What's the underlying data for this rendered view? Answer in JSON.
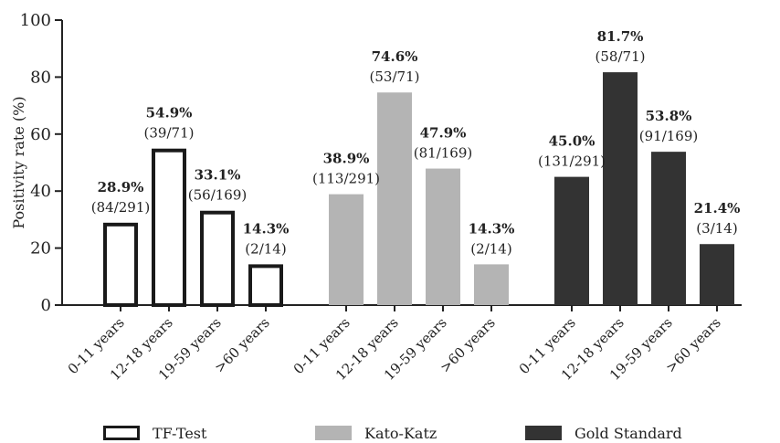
{
  "chart_data": {
    "type": "bar",
    "title": "",
    "ylabel": "Positivity rate (%)",
    "xlabel": "",
    "ylim": [
      0,
      100
    ],
    "yticks": [
      0,
      20,
      40,
      60,
      80,
      100
    ],
    "grid": false,
    "legend_position": "bottom",
    "categories": [
      "0-11 years",
      "12-18 years",
      "19-59 years",
      ">60 years"
    ],
    "series": [
      {
        "name": "TF-Test",
        "style": "outline",
        "color": "#1a1a1a",
        "values": [
          28.9,
          54.9,
          33.1,
          14.3
        ],
        "value_labels": [
          "28.9%",
          "54.9%",
          "33.1%",
          "14.3%"
        ],
        "fraction_labels": [
          "(84/291)",
          "(39/71)",
          "(56/169)",
          "(2/14)"
        ]
      },
      {
        "name": "Kato-Katz",
        "style": "filled",
        "color": "#b4b4b4",
        "values": [
          38.9,
          74.6,
          47.9,
          14.3
        ],
        "value_labels": [
          "38.9%",
          "74.6%",
          "47.9%",
          "14.3%"
        ],
        "fraction_labels": [
          "(113/291)",
          "(53/71)",
          "(81/169)",
          "(2/14)"
        ]
      },
      {
        "name": "Gold Standard",
        "style": "filled",
        "color": "#333333",
        "values": [
          45.0,
          81.7,
          53.8,
          21.4
        ],
        "value_labels": [
          "45.0%",
          "81.7%",
          "53.8%",
          "21.4%"
        ],
        "fraction_labels": [
          "(131/291)",
          "(58/71)",
          "(91/169)",
          "(3/14)"
        ]
      }
    ]
  }
}
